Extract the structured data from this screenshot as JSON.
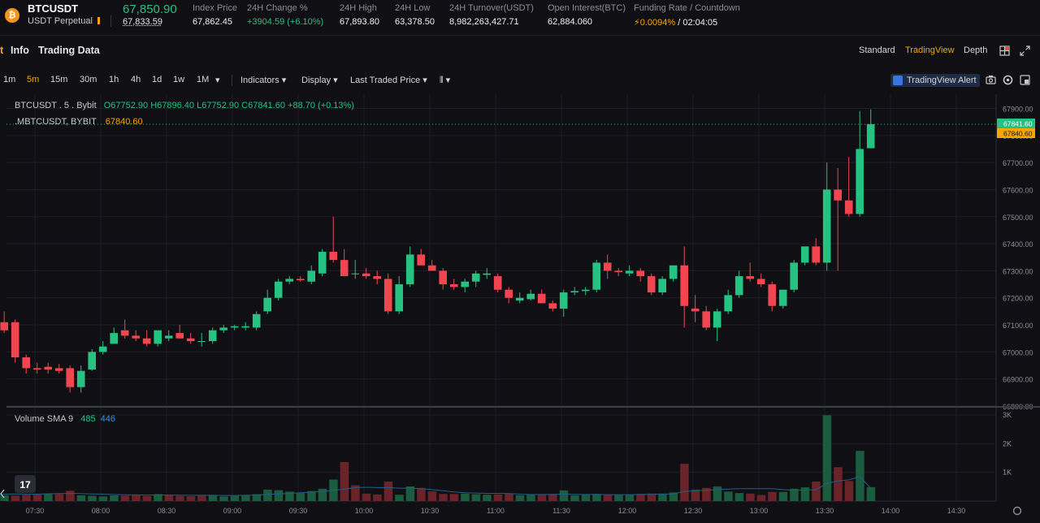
{
  "header": {
    "coin_glyph": "₿",
    "symbol": "BTCUSDT",
    "contract": "USDT Perpetual",
    "last_price": "67,850.90",
    "mark_price": "67,833.59",
    "stats": [
      {
        "label": "Index Price",
        "value": "67,862.45"
      },
      {
        "label": "24H Change %",
        "value": "+3904.59 (+6.10%)"
      },
      {
        "label": "24H High",
        "value": "67,893.80"
      },
      {
        "label": "24H Low",
        "value": "63,378.50"
      },
      {
        "label": "24H Turnover(USDT)",
        "value": "8,982,263,427.71"
      },
      {
        "label": "Open Interest(BTC)",
        "value": "62,884.060"
      }
    ],
    "funding": {
      "label": "Funding Rate / Countdown",
      "rate": "0.0094%",
      "countdown": "/ 02:04:05",
      "icon": "lightning-icon"
    }
  },
  "tabs": {
    "partial": "t",
    "info": "Info",
    "trading_data": "Trading Data"
  },
  "views": {
    "standard": "Standard",
    "tradingview": "TradingView",
    "depth": "Depth"
  },
  "toolbar": {
    "timeframes": [
      "1m",
      "5m",
      "15m",
      "30m",
      "1h",
      "4h",
      "1d",
      "1w",
      "1M"
    ],
    "active_timeframe": "5m",
    "more": "▾",
    "indicators": "Indicators ▾",
    "display": "Display ▾",
    "price_type": "Last Traded Price ▾",
    "chart_style": "⫴ ▾",
    "alert": "TradingView Alert"
  },
  "legend": {
    "title": "BTCUSDT . 5 . Bybit",
    "ohlc": "O67752.90  H67896.40  L67752.90  C67841.60  +88.70 (+0.13%)",
    "mark_title": ".MBTCUSDT, BYBIT",
    "mark_value": "67840.60",
    "volume_title": "Volume SMA 9",
    "volume_value": "485",
    "sma_value": "446"
  },
  "price_tags": {
    "last": "67841.60",
    "mark": "67840.60"
  },
  "colors": {
    "up": "#25c281",
    "down": "#f1464f",
    "accent": "#f7a600",
    "bg": "#101014",
    "grid": "#1c1e24",
    "sma": "#3a8fde"
  },
  "chart_data": {
    "type": "candlestick",
    "y_ticks": [
      "67900.00",
      "67800.00",
      "67700.00",
      "67600.00",
      "67500.00",
      "67400.00",
      "67300.00",
      "67200.00",
      "67100.00",
      "67000.00",
      "66900.00",
      "66800.00"
    ],
    "ylim": [
      66800,
      67950
    ],
    "volume_ticks": [
      "3K",
      "2K",
      "1K"
    ],
    "volume_ylim": [
      0,
      3000
    ],
    "x_ticks": [
      "07:30",
      "08:00",
      "08:30",
      "09:00",
      "09:30",
      "10:00",
      "10:30",
      "11:00",
      "11:30",
      "12:00",
      "12:30",
      "13:00",
      "13:30",
      "14:00",
      "14:30"
    ],
    "start_time": "07:10",
    "interval_min": 5,
    "candles": [
      [
        67070,
        67200,
        67050,
        67110
      ],
      [
        67110,
        67150,
        67070,
        67080
      ],
      [
        67110,
        67120,
        66960,
        66980
      ],
      [
        66980,
        66990,
        66920,
        66940
      ],
      [
        66940,
        66960,
        66920,
        66935
      ],
      [
        66945,
        66960,
        66920,
        66935
      ],
      [
        66940,
        66955,
        66920,
        66930
      ],
      [
        66940,
        66950,
        66850,
        66870
      ],
      [
        66870,
        66950,
        66850,
        66930
      ],
      [
        66935,
        67010,
        66930,
        67000
      ],
      [
        67000,
        67040,
        66990,
        67020
      ],
      [
        67030,
        67090,
        67030,
        67070
      ],
      [
        67080,
        67120,
        67050,
        67060
      ],
      [
        67060,
        67080,
        67040,
        67050
      ],
      [
        67050,
        67080,
        67020,
        67030
      ],
      [
        67030,
        67080,
        67020,
        67080
      ],
      [
        67050,
        67080,
        67040,
        67060
      ],
      [
        67070,
        67100,
        67050,
        67050
      ],
      [
        67050,
        67070,
        67030,
        67040
      ],
      [
        67040,
        67070,
        67020,
        67040
      ],
      [
        67040,
        67090,
        67030,
        67080
      ],
      [
        67080,
        67100,
        67070,
        67090
      ],
      [
        67090,
        67100,
        67080,
        67095
      ],
      [
        67090,
        67110,
        67080,
        67095
      ],
      [
        67090,
        67150,
        67080,
        67140
      ],
      [
        67150,
        67230,
        67140,
        67200
      ],
      [
        67200,
        67270,
        67190,
        67260
      ],
      [
        67260,
        67280,
        67250,
        67270
      ],
      [
        67270,
        67280,
        67260,
        67265
      ],
      [
        67260,
        67320,
        67250,
        67300
      ],
      [
        67290,
        67380,
        67280,
        67370
      ],
      [
        67370,
        67500,
        67330,
        67340
      ],
      [
        67340,
        67380,
        67280,
        67280
      ],
      [
        67290,
        67340,
        67270,
        67290
      ],
      [
        67290,
        67310,
        67270,
        67280
      ],
      [
        67280,
        67300,
        67250,
        67270
      ],
      [
        67270,
        67290,
        67140,
        67150
      ],
      [
        67150,
        67280,
        67140,
        67250
      ],
      [
        67250,
        67390,
        67240,
        67360
      ],
      [
        67360,
        67380,
        67320,
        67320
      ],
      [
        67320,
        67340,
        67300,
        67300
      ],
      [
        67300,
        67310,
        67230,
        67250
      ],
      [
        67250,
        67270,
        67230,
        67240
      ],
      [
        67240,
        67270,
        67220,
        67260
      ],
      [
        67260,
        67300,
        67240,
        67290
      ],
      [
        67285,
        67310,
        67270,
        67290
      ],
      [
        67280,
        67290,
        67220,
        67230
      ],
      [
        67230,
        67240,
        67180,
        67200
      ],
      [
        67190,
        67220,
        67180,
        67200
      ],
      [
        67195,
        67230,
        67190,
        67215
      ],
      [
        67215,
        67230,
        67180,
        67180
      ],
      [
        67180,
        67190,
        67150,
        67160
      ],
      [
        67160,
        67230,
        67130,
        67220
      ],
      [
        67220,
        67240,
        67210,
        67225
      ],
      [
        67225,
        67240,
        67210,
        67230
      ],
      [
        67230,
        67340,
        67220,
        67330
      ],
      [
        67330,
        67360,
        67270,
        67300
      ],
      [
        67300,
        67310,
        67280,
        67295
      ],
      [
        67290,
        67320,
        67280,
        67300
      ],
      [
        67300,
        67310,
        67260,
        67280
      ],
      [
        67280,
        67290,
        67210,
        67220
      ],
      [
        67220,
        67280,
        67210,
        67270
      ],
      [
        67270,
        67320,
        67260,
        67320
      ],
      [
        67320,
        67390,
        67090,
        67170
      ],
      [
        67160,
        67210,
        67110,
        67150
      ],
      [
        67150,
        67170,
        67080,
        67090
      ],
      [
        67090,
        67160,
        67040,
        67150
      ],
      [
        67150,
        67230,
        67140,
        67210
      ],
      [
        67210,
        67300,
        67200,
        67280
      ],
      [
        67280,
        67330,
        67260,
        67270
      ],
      [
        67270,
        67290,
        67240,
        67250
      ],
      [
        67250,
        67260,
        67150,
        67170
      ],
      [
        67170,
        67230,
        67160,
        67230
      ],
      [
        67230,
        67340,
        67220,
        67330
      ],
      [
        67330,
        67390,
        67320,
        67390
      ],
      [
        67390,
        67420,
        67320,
        67330
      ],
      [
        67330,
        67700,
        67300,
        67600
      ],
      [
        67600,
        67680,
        67300,
        67560
      ],
      [
        67560,
        67720,
        67500,
        67510
      ],
      [
        67510,
        67890,
        67500,
        67750
      ],
      [
        67752.9,
        67896.4,
        67752.9,
        67841.6
      ]
    ],
    "volumes": [
      [
        170,
        0
      ],
      [
        200,
        1
      ],
      [
        190,
        0
      ],
      [
        220,
        0
      ],
      [
        230,
        0
      ],
      [
        240,
        1
      ],
      [
        250,
        0
      ],
      [
        360,
        0
      ],
      [
        200,
        1
      ],
      [
        180,
        1
      ],
      [
        160,
        1
      ],
      [
        200,
        1
      ],
      [
        190,
        0
      ],
      [
        200,
        0
      ],
      [
        180,
        0
      ],
      [
        240,
        1
      ],
      [
        200,
        0
      ],
      [
        180,
        0
      ],
      [
        170,
        0
      ],
      [
        190,
        0
      ],
      [
        200,
        1
      ],
      [
        160,
        1
      ],
      [
        180,
        1
      ],
      [
        200,
        1
      ],
      [
        240,
        1
      ],
      [
        400,
        1
      ],
      [
        380,
        1
      ],
      [
        330,
        1
      ],
      [
        280,
        1
      ],
      [
        350,
        1
      ],
      [
        430,
        1
      ],
      [
        750,
        1
      ],
      [
        1360,
        0
      ],
      [
        550,
        0
      ],
      [
        260,
        0
      ],
      [
        230,
        0
      ],
      [
        680,
        0
      ],
      [
        220,
        1
      ],
      [
        510,
        1
      ],
      [
        460,
        0
      ],
      [
        340,
        0
      ],
      [
        250,
        0
      ],
      [
        250,
        0
      ],
      [
        260,
        1
      ],
      [
        240,
        1
      ],
      [
        220,
        1
      ],
      [
        230,
        0
      ],
      [
        260,
        0
      ],
      [
        200,
        1
      ],
      [
        220,
        1
      ],
      [
        220,
        0
      ],
      [
        250,
        0
      ],
      [
        370,
        1
      ],
      [
        200,
        1
      ],
      [
        220,
        1
      ],
      [
        250,
        1
      ],
      [
        210,
        0
      ],
      [
        210,
        1
      ],
      [
        220,
        1
      ],
      [
        250,
        0
      ],
      [
        260,
        0
      ],
      [
        260,
        1
      ],
      [
        300,
        1
      ],
      [
        1300,
        0
      ],
      [
        400,
        0
      ],
      [
        460,
        0
      ],
      [
        510,
        1
      ],
      [
        330,
        1
      ],
      [
        280,
        1
      ],
      [
        260,
        0
      ],
      [
        210,
        0
      ],
      [
        320,
        0
      ],
      [
        320,
        1
      ],
      [
        430,
        1
      ],
      [
        480,
        1
      ],
      [
        680,
        0
      ],
      [
        2990,
        1
      ],
      [
        1180,
        0
      ],
      [
        700,
        0
      ],
      [
        1750,
        1
      ],
      [
        485,
        1
      ]
    ],
    "sma": [
      230,
      240,
      250,
      240,
      240,
      255,
      260,
      270,
      260,
      250,
      240,
      230,
      220,
      215,
      210,
      215,
      210,
      205,
      200,
      200,
      200,
      195,
      195,
      200,
      210,
      230,
      250,
      270,
      290,
      310,
      340,
      370,
      420,
      470,
      480,
      470,
      470,
      450,
      450,
      430,
      400,
      360,
      320,
      290,
      280,
      270,
      270,
      260,
      240,
      230,
      230,
      230,
      240,
      235,
      230,
      230,
      225,
      225,
      225,
      230,
      235,
      240,
      250,
      330,
      360,
      380,
      400,
      420,
      430,
      430,
      430,
      430,
      400,
      380,
      380,
      400,
      610,
      700,
      740,
      850,
      446
    ]
  }
}
